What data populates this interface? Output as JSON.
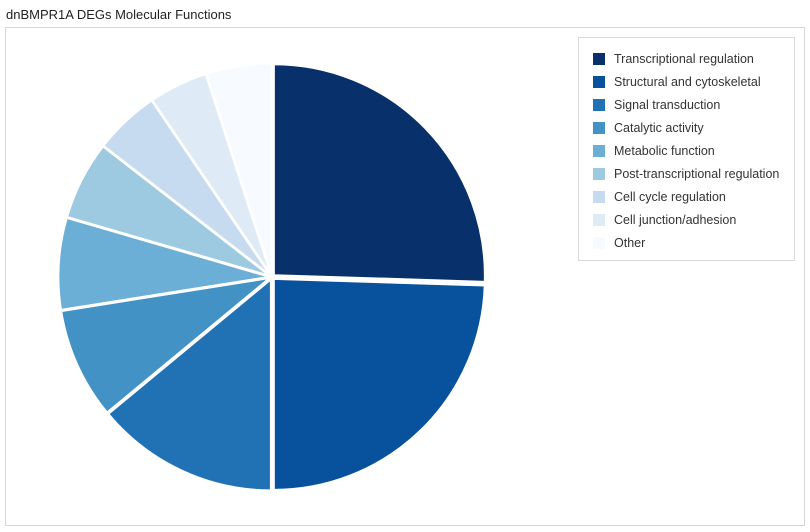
{
  "chart_data": {
    "type": "pie",
    "title": "dnBMPR1A DEGs Molecular Functions",
    "legend_position": "top-right",
    "slices": [
      {
        "label": "Transcriptional regulation",
        "value": 25.5,
        "color": "#08306b"
      },
      {
        "label": "Structural and cytoskeletal",
        "value": 24.5,
        "color": "#08519c"
      },
      {
        "label": "Signal transduction",
        "value": 14.0,
        "color": "#2171b5"
      },
      {
        "label": "Catalytic activity",
        "value": 8.5,
        "color": "#4292c6"
      },
      {
        "label": "Metabolic function",
        "value": 7.0,
        "color": "#6baed6"
      },
      {
        "label": "Post-transcriptional regulation",
        "value": 6.0,
        "color": "#9ecae1"
      },
      {
        "label": "Cell cycle regulation",
        "value": 5.0,
        "color": "#c6dbef"
      },
      {
        "label": "Cell junction/adhesion",
        "value": 4.5,
        "color": "#deebf7"
      },
      {
        "label": "Other",
        "value": 5.0,
        "color": "#f7fbff"
      }
    ]
  }
}
